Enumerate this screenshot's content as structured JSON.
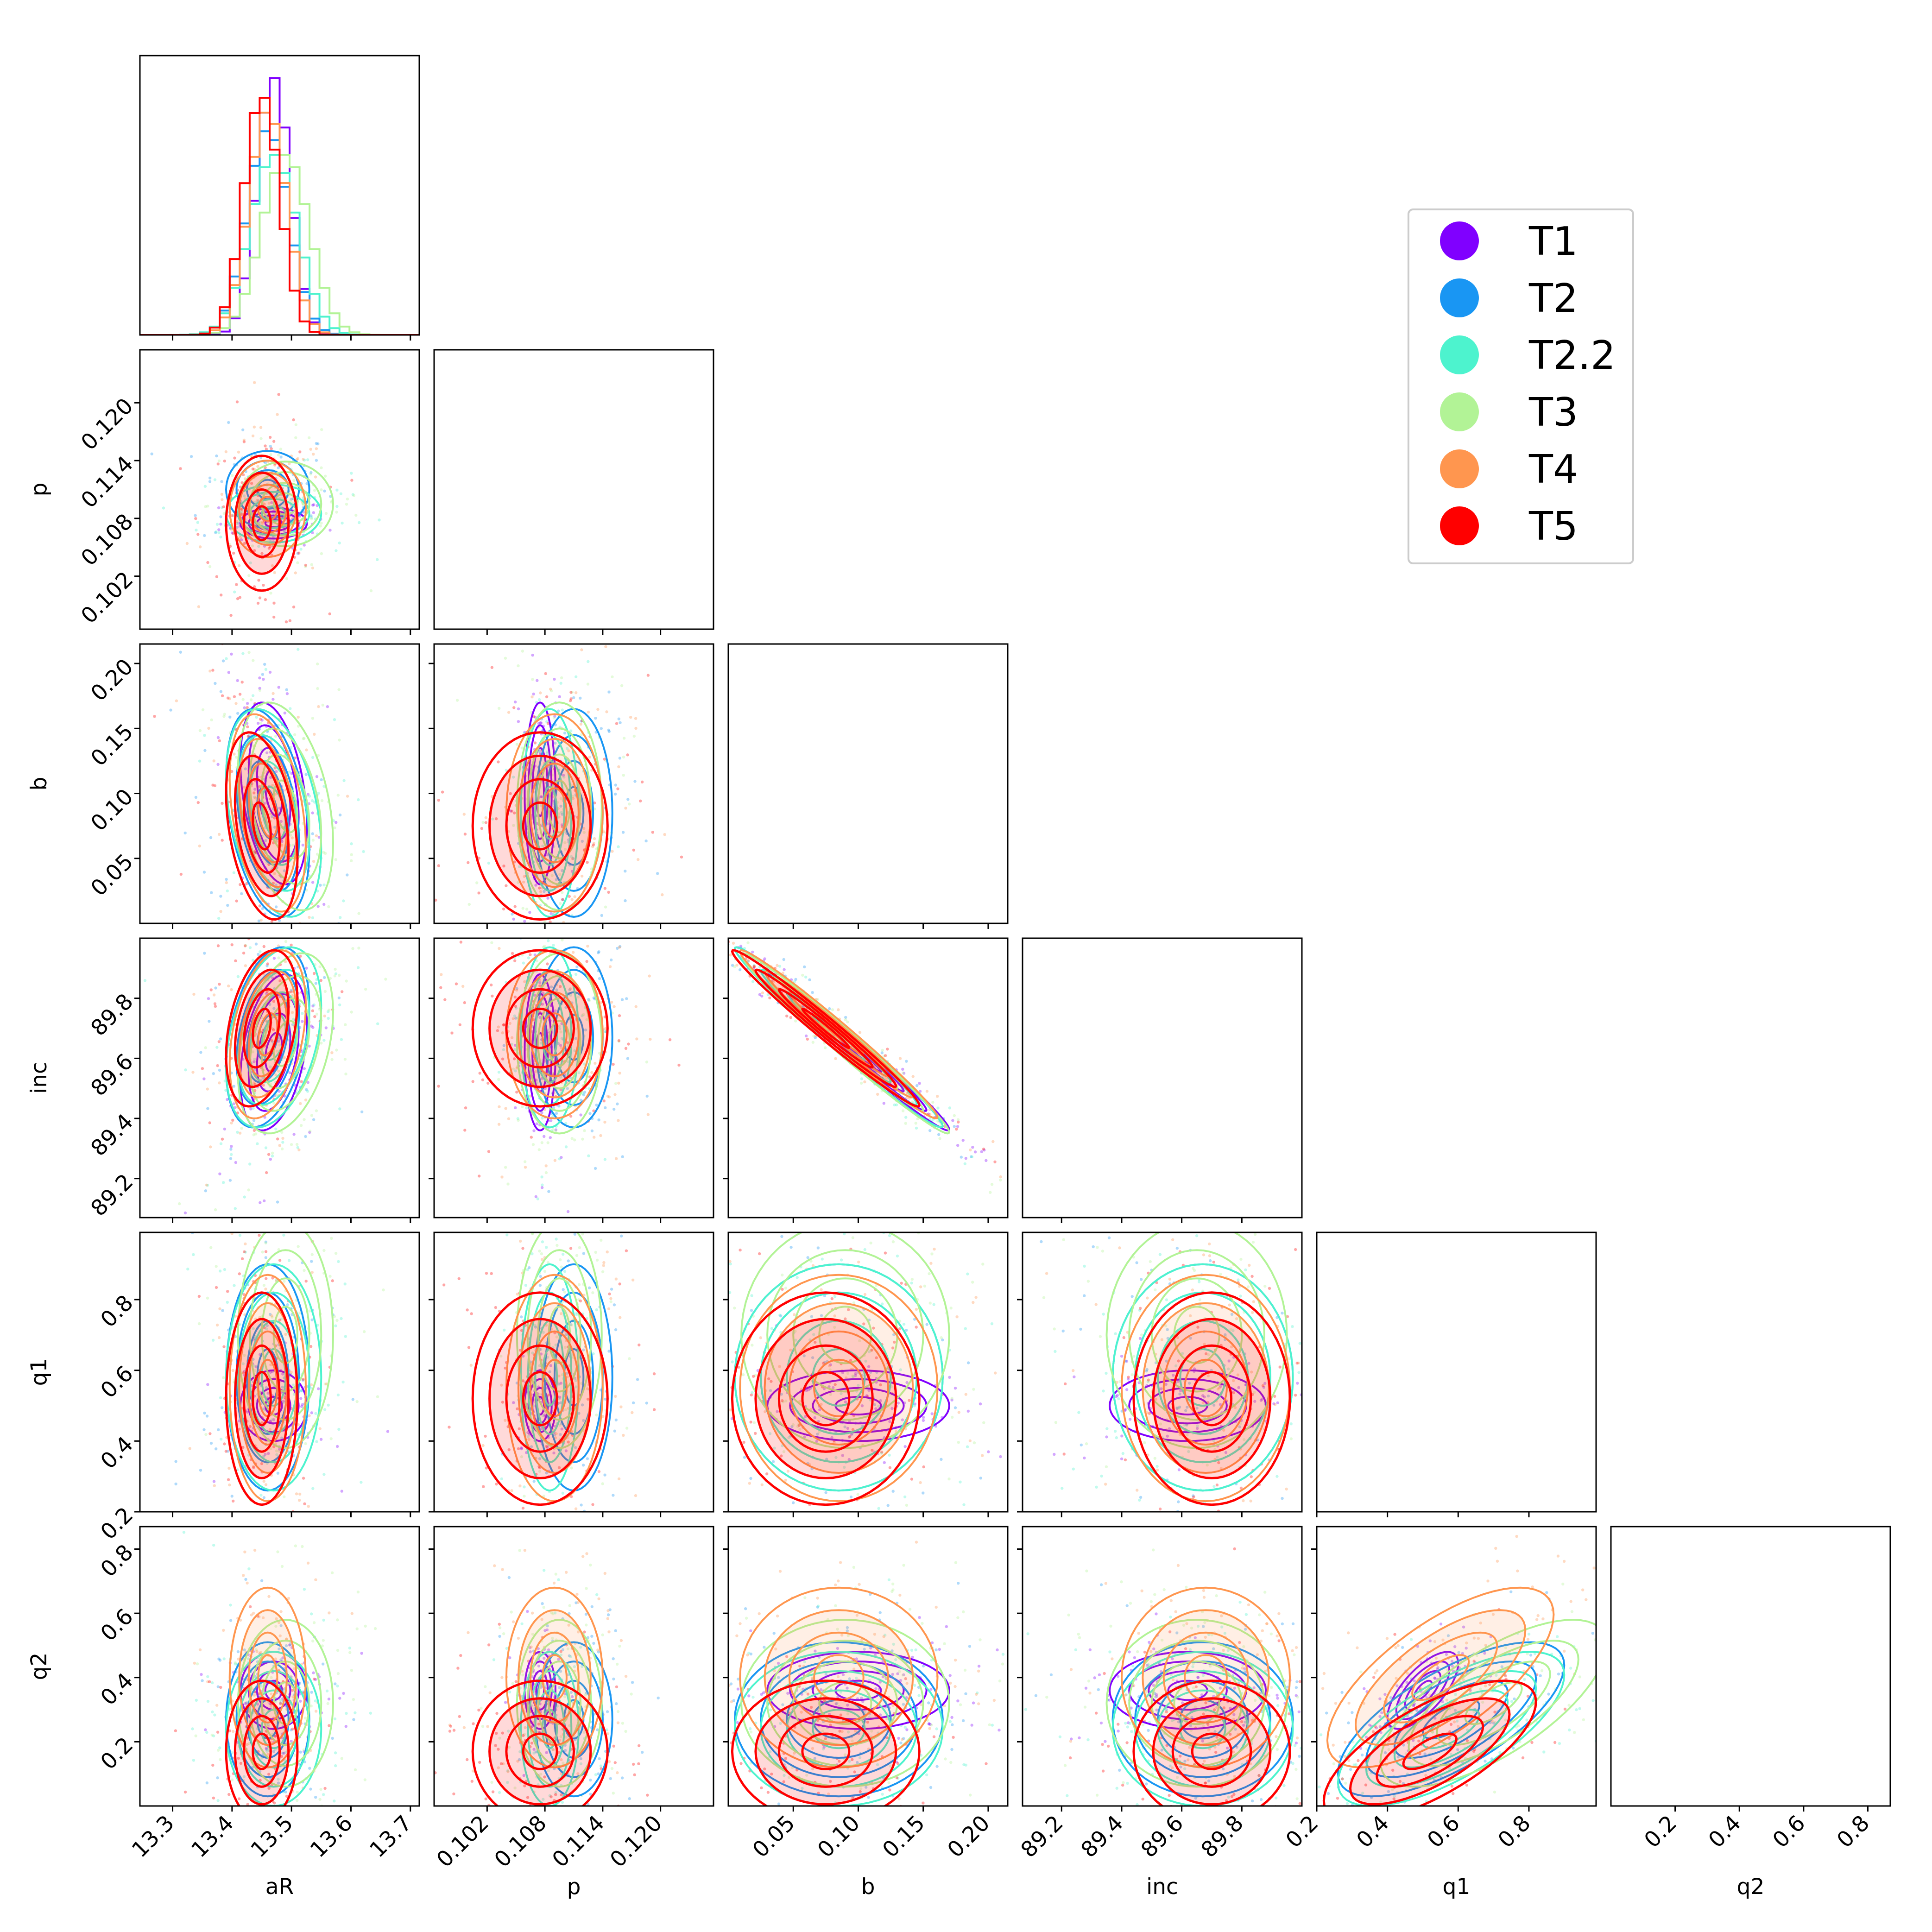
{
  "chart_data": {
    "type": "corner",
    "title": "",
    "parameters": [
      "aR",
      "p",
      "b",
      "inc",
      "q1",
      "q2"
    ],
    "axes": [
      {
        "label": "aR",
        "lim": [
          13.245,
          13.715
        ],
        "ticks": [
          13.3,
          13.4,
          13.5,
          13.6,
          13.7
        ],
        "tick_labels": [
          "13.3",
          "13.4",
          "13.5",
          "13.6",
          "13.7"
        ]
      },
      {
        "label": "p",
        "lim": [
          0.0965,
          0.1255
        ],
        "ticks": [
          0.102,
          0.108,
          0.114,
          0.12
        ],
        "tick_labels": [
          "0.102",
          "0.108",
          "0.114",
          "0.120"
        ]
      },
      {
        "label": "b",
        "lim": [
          0.0,
          0.215
        ],
        "ticks": [
          0.05,
          0.1,
          0.15,
          0.2
        ],
        "tick_labels": [
          "0.05",
          "0.10",
          "0.15",
          "0.20"
        ]
      },
      {
        "label": "inc",
        "lim": [
          89.07,
          90.0
        ],
        "ticks": [
          89.2,
          89.4,
          89.6,
          89.8
        ],
        "tick_labels": [
          "89.2",
          "89.4",
          "89.6",
          "89.8"
        ]
      },
      {
        "label": "q1",
        "lim": [
          0.2,
          0.99
        ],
        "ticks": [
          0.2,
          0.4,
          0.6,
          0.8
        ],
        "tick_labels": [
          "0.2",
          "0.4",
          "0.6",
          "0.8"
        ]
      },
      {
        "label": "q2",
        "lim": [
          0.0,
          0.87
        ],
        "ticks": [
          0.2,
          0.4,
          0.6,
          0.8
        ],
        "tick_labels": [
          "0.2",
          "0.4",
          "0.6",
          "0.8"
        ]
      }
    ],
    "series": [
      {
        "name": "T1",
        "color": "#8000ff",
        "mean": {
          "aR": 13.47,
          "p": 0.1075,
          "b": 0.1,
          "inc": 89.62,
          "q1": 0.5,
          "q2": 0.36
        },
        "std": {
          "aR": 0.028,
          "p": 0.0008,
          "b": 0.035,
          "inc": 0.13,
          "q1": 0.05,
          "q2": 0.06
        }
      },
      {
        "name": "T2",
        "color": "#1996f3",
        "mean": {
          "aR": 13.46,
          "p": 0.111,
          "b": 0.085,
          "inc": 89.67,
          "q1": 0.58,
          "q2": 0.27
        },
        "std": {
          "aR": 0.035,
          "p": 0.002,
          "b": 0.04,
          "inc": 0.15,
          "q1": 0.16,
          "q2": 0.12
        }
      },
      {
        "name": "T2.2",
        "color": "#4df3ce",
        "mean": {
          "aR": 13.47,
          "p": 0.1085,
          "b": 0.085,
          "inc": 89.67,
          "q1": 0.58,
          "q2": 0.24
        },
        "std": {
          "aR": 0.04,
          "p": 0.0015,
          "b": 0.04,
          "inc": 0.15,
          "q1": 0.16,
          "q2": 0.12
        }
      },
      {
        "name": "T3",
        "color": "#b2f396",
        "mean": {
          "aR": 13.49,
          "p": 0.1095,
          "b": 0.09,
          "inc": 89.65,
          "q1": 0.7,
          "q2": 0.32
        },
        "std": {
          "aR": 0.04,
          "p": 0.0022,
          "b": 0.04,
          "inc": 0.15,
          "q1": 0.16,
          "q2": 0.13
        }
      },
      {
        "name": "T4",
        "color": "#ff964f",
        "mean": {
          "aR": 13.46,
          "p": 0.109,
          "b": 0.085,
          "inc": 89.68,
          "q1": 0.55,
          "q2": 0.4
        },
        "std": {
          "aR": 0.032,
          "p": 0.0025,
          "b": 0.038,
          "inc": 0.14,
          "q1": 0.16,
          "q2": 0.14
        }
      },
      {
        "name": "T5",
        "color": "#ff0000",
        "mean": {
          "aR": 13.45,
          "p": 0.1075,
          "b": 0.075,
          "inc": 89.7,
          "q1": 0.52,
          "q2": 0.17
        },
        "std": {
          "aR": 0.03,
          "p": 0.0035,
          "b": 0.036,
          "inc": 0.13,
          "q1": 0.15,
          "q2": 0.11
        }
      }
    ],
    "legend": {
      "entries": [
        "T1",
        "T2",
        "T2.2",
        "T3",
        "T4",
        "T5"
      ],
      "position": "upper-right"
    }
  }
}
